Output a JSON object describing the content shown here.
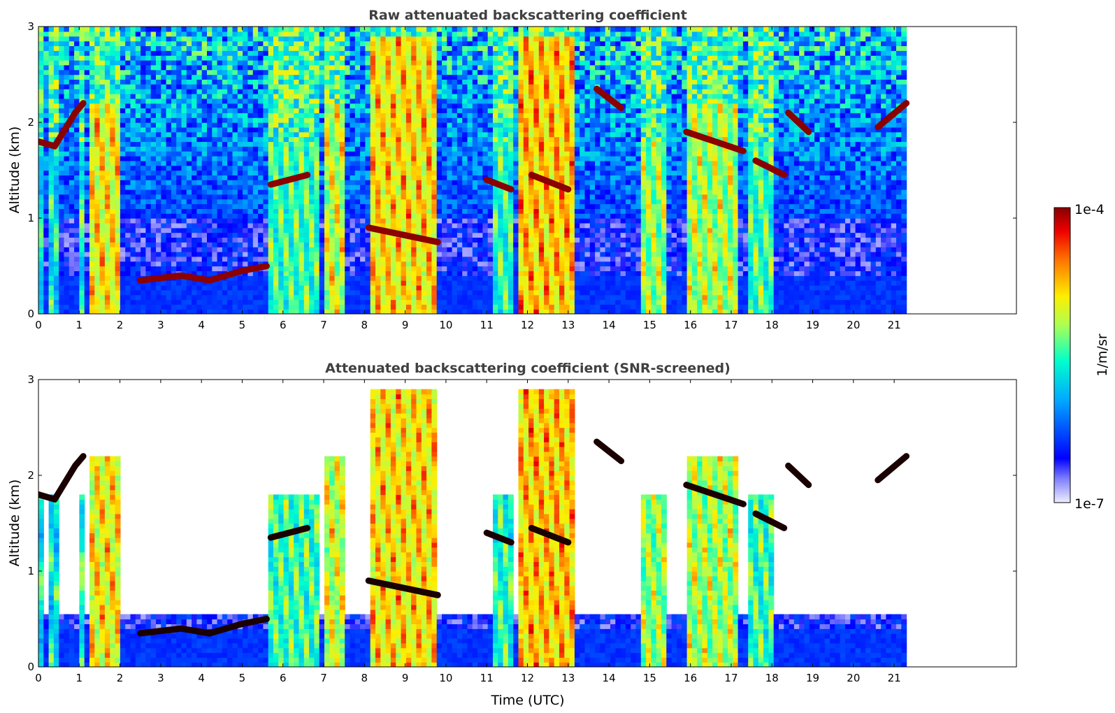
{
  "chart_data": [
    {
      "type": "heatmap",
      "title": "Raw attenuated backscattering coefficient",
      "xlabel": "",
      "ylabel": "Altitude (km)",
      "xlim": [
        0,
        24
      ],
      "ylim": [
        0,
        3
      ],
      "xticks": [
        "0",
        "1",
        "2",
        "3",
        "4",
        "5",
        "6",
        "7",
        "8",
        "9",
        "10",
        "11",
        "12",
        "13",
        "14",
        "15",
        "16",
        "17",
        "18",
        "19",
        "20",
        "21"
      ],
      "yticks": [
        "0",
        "1",
        "2",
        "3"
      ],
      "data_end_time": 21.3,
      "screened": false,
      "columns": [
        {
          "x0": 0.0,
          "x1": 0.15,
          "kind": "cloud",
          "level": 0.55
        },
        {
          "x0": 0.25,
          "x1": 0.45,
          "kind": "cloud",
          "level": 0.55
        },
        {
          "x0": 0.95,
          "x1": 1.15,
          "kind": "cloud",
          "level": 0.6
        },
        {
          "x0": 1.3,
          "x1": 1.95,
          "kind": "cloud",
          "level": 0.8
        },
        {
          "x0": 5.7,
          "x1": 6.9,
          "kind": "cloud",
          "level": 0.62
        },
        {
          "x0": 7.0,
          "x1": 7.5,
          "kind": "cloud",
          "level": 0.75
        },
        {
          "x0": 8.1,
          "x1": 9.8,
          "kind": "cloud",
          "level": 0.82
        },
        {
          "x0": 11.1,
          "x1": 11.7,
          "kind": "cloud",
          "level": 0.6
        },
        {
          "x0": 11.75,
          "x1": 13.1,
          "kind": "cloud",
          "level": 0.85
        },
        {
          "x0": 14.8,
          "x1": 15.4,
          "kind": "cloud",
          "level": 0.7
        },
        {
          "x0": 15.85,
          "x1": 17.2,
          "kind": "cloud",
          "level": 0.72
        },
        {
          "x0": 17.4,
          "x1": 18.05,
          "kind": "cloud",
          "level": 0.62
        }
      ],
      "layers": [
        {
          "x": [
            0.0,
            0.4,
            0.9,
            1.1
          ],
          "alt": [
            1.8,
            1.75,
            2.1,
            2.2
          ]
        },
        {
          "x": [
            2.5,
            3.5,
            4.2,
            5.0,
            5.6
          ],
          "alt": [
            0.35,
            0.4,
            0.35,
            0.45,
            0.5
          ]
        },
        {
          "x": [
            5.7,
            6.6
          ],
          "alt": [
            1.35,
            1.45
          ]
        },
        {
          "x": [
            8.1,
            9.8
          ],
          "alt": [
            0.9,
            0.75
          ]
        },
        {
          "x": [
            11.0,
            11.6
          ],
          "alt": [
            1.4,
            1.3
          ]
        },
        {
          "x": [
            12.1,
            13.0
          ],
          "alt": [
            1.45,
            1.3
          ]
        },
        {
          "x": [
            13.7,
            14.3
          ],
          "alt": [
            2.35,
            2.15
          ]
        },
        {
          "x": [
            15.9,
            17.3
          ],
          "alt": [
            1.9,
            1.7
          ]
        },
        {
          "x": [
            17.6,
            18.3
          ],
          "alt": [
            1.6,
            1.45
          ]
        },
        {
          "x": [
            18.4,
            18.9
          ],
          "alt": [
            2.1,
            1.9
          ]
        },
        {
          "x": [
            20.6,
            21.3
          ],
          "alt": [
            1.95,
            2.2
          ]
        }
      ]
    },
    {
      "type": "heatmap",
      "title": "Attenuated backscattering coefficient (SNR-screened)",
      "xlabel": "Time (UTC)",
      "ylabel": "Altitude (km)",
      "xlim": [
        0,
        24
      ],
      "ylim": [
        0,
        3
      ],
      "xticks": [
        "0",
        "1",
        "2",
        "3",
        "4",
        "5",
        "6",
        "7",
        "8",
        "9",
        "10",
        "11",
        "12",
        "13",
        "14",
        "15",
        "16",
        "17",
        "18",
        "19",
        "20",
        "21"
      ],
      "yticks": [
        "0",
        "1",
        "2",
        "3"
      ],
      "data_end_time": 21.3,
      "screened": true
    }
  ],
  "colorbar": {
    "label": "1/m/sr",
    "max_label": "1e-4",
    "min_label": "1e-7",
    "colormap": "jet"
  },
  "colors": {
    "title": "#404040",
    "background_noise": "#0000ff",
    "cloud_core": "#ff3300",
    "layer": "#8b0000"
  }
}
